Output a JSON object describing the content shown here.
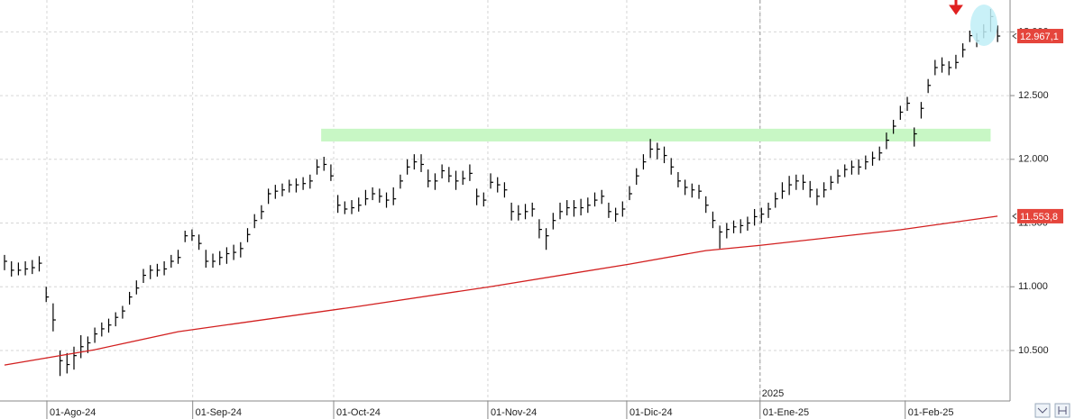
{
  "chart_data": {
    "type": "ohlc",
    "xlim": [
      -0.65,
      144.8
    ],
    "ylim": [
      10104,
      13250
    ],
    "yticks": [
      {
        "value": 10500,
        "label": "10.500"
      },
      {
        "value": 11000,
        "label": "11.000"
      },
      {
        "value": 11500,
        "label": "11.500"
      },
      {
        "value": 12000,
        "label": "12.000"
      },
      {
        "value": 12500,
        "label": "12.500"
      },
      {
        "value": 13000,
        "label": "13.000"
      }
    ],
    "xticks": [
      {
        "value": 6.1,
        "label": "01-Ago-24"
      },
      {
        "value": 27.1,
        "label": "01-Sep-24"
      },
      {
        "value": 47.4,
        "label": "01-Oct-24"
      },
      {
        "value": 69.6,
        "label": "01-Nov-24"
      },
      {
        "value": 89.6,
        "label": "01-Dic-24"
      },
      {
        "value": 108.8,
        "label": "01-Ene-25"
      },
      {
        "value": 129.7,
        "label": "01-Feb-25"
      }
    ],
    "year_marker": {
      "x": 108.8,
      "label": "2025"
    },
    "grid": true,
    "bars": {
      "color": "#000000",
      "label_color": "#e5453c",
      "last_label": "12.967,1",
      "high": [
        11250,
        11200,
        11190,
        11200,
        11210,
        11240,
        11000,
        10870,
        10500,
        10480,
        10530,
        10620,
        10610,
        10680,
        10720,
        10750,
        10800,
        10850,
        10960,
        11050,
        11140,
        11170,
        11180,
        11200,
        11250,
        11290,
        11440,
        11450,
        11410,
        11290,
        11260,
        11280,
        11310,
        11330,
        11350,
        11460,
        11570,
        11640,
        11770,
        11800,
        11810,
        11840,
        11850,
        11860,
        11880,
        12000,
        12020,
        11960,
        11720,
        11670,
        11680,
        11700,
        11760,
        11780,
        11770,
        11740,
        11780,
        11880,
        12000,
        12040,
        12040,
        11920,
        11890,
        11960,
        11940,
        11910,
        11910,
        11960,
        11770,
        11740,
        11890,
        11860,
        11820,
        11660,
        11640,
        11650,
        11660,
        11530,
        11460,
        11580,
        11660,
        11680,
        11680,
        11690,
        11700,
        11740,
        11760,
        11660,
        11620,
        11670,
        11790,
        11930,
        12040,
        12160,
        12130,
        12100,
        12010,
        11900,
        11840,
        11810,
        11800,
        11710,
        11590,
        11480,
        11500,
        11520,
        11530,
        11550,
        11610,
        11620,
        11660,
        11740,
        11820,
        11870,
        11880,
        11880,
        11830,
        11770,
        11820,
        11870,
        11920,
        11960,
        11990,
        12000,
        12030,
        12060,
        12100,
        12210,
        12310,
        12420,
        12490,
        12250,
        12450,
        12630,
        12780,
        12800,
        12770,
        12820,
        12910,
        13010,
        12990,
        13060,
        13180,
        13050
      ],
      "low": [
        11130,
        11080,
        11090,
        11090,
        11100,
        11120,
        10880,
        10650,
        10300,
        10320,
        10350,
        10440,
        10480,
        10560,
        10610,
        10640,
        10690,
        10750,
        10860,
        10940,
        11030,
        11060,
        11080,
        11090,
        11150,
        11180,
        11350,
        11360,
        11290,
        11150,
        11150,
        11170,
        11180,
        11210,
        11230,
        11350,
        11460,
        11530,
        11650,
        11690,
        11710,
        11740,
        11740,
        11760,
        11770,
        11880,
        11910,
        11830,
        11580,
        11570,
        11570,
        11590,
        11640,
        11680,
        11660,
        11620,
        11640,
        11770,
        11880,
        11920,
        11900,
        11780,
        11760,
        11850,
        11820,
        11760,
        11800,
        11830,
        11640,
        11630,
        11770,
        11740,
        11700,
        11520,
        11520,
        11530,
        11550,
        11380,
        11290,
        11450,
        11530,
        11560,
        11550,
        11560,
        11580,
        11630,
        11650,
        11540,
        11510,
        11550,
        11680,
        11800,
        11920,
        12010,
        12000,
        11970,
        11880,
        11780,
        11720,
        11700,
        11690,
        11580,
        11460,
        11300,
        11380,
        11420,
        11420,
        11440,
        11480,
        11500,
        11540,
        11620,
        11690,
        11720,
        11760,
        11760,
        11700,
        11640,
        11700,
        11760,
        11810,
        11860,
        11880,
        11880,
        11920,
        11950,
        11990,
        12080,
        12200,
        12310,
        12380,
        12100,
        12320,
        12520,
        12660,
        12680,
        12660,
        12710,
        12800,
        12920,
        12880,
        12950,
        13000,
        12920
      ],
      "close": [
        11200,
        11130,
        11130,
        11140,
        11150,
        11185,
        10920,
        10740,
        10420,
        10390,
        10460,
        10530,
        10560,
        10630,
        10670,
        10700,
        10760,
        10810,
        10920,
        10990,
        11090,
        11130,
        11130,
        11140,
        11200,
        11230,
        11400,
        11400,
        11340,
        11200,
        11200,
        11230,
        11260,
        11270,
        11300,
        11410,
        11520,
        11590,
        11730,
        11750,
        11760,
        11800,
        11800,
        11810,
        11830,
        11940,
        11960,
        11870,
        11640,
        11610,
        11620,
        11640,
        11690,
        11730,
        11710,
        11680,
        11690,
        11830,
        11940,
        11980,
        11960,
        11830,
        11830,
        11910,
        11870,
        11830,
        11850,
        11890,
        11710,
        11680,
        11820,
        11800,
        11760,
        11590,
        11570,
        11590,
        11610,
        11450,
        11400,
        11520,
        11590,
        11620,
        11620,
        11620,
        11640,
        11680,
        11710,
        11590,
        11570,
        11610,
        11730,
        11870,
        11980,
        12080,
        12080,
        12030,
        11940,
        11830,
        11780,
        11760,
        11750,
        11640,
        11520,
        11430,
        11450,
        11470,
        11480,
        11500,
        11550,
        11570,
        11610,
        11690,
        11750,
        11800,
        11830,
        11820,
        11760,
        11710,
        11760,
        11820,
        11870,
        11920,
        11940,
        11940,
        11980,
        12010,
        12050,
        12150,
        12260,
        12370,
        12440,
        12200,
        12400,
        12580,
        12720,
        12740,
        12720,
        12760,
        12860,
        12970,
        12930,
        13000,
        13120,
        12967.1
      ]
    },
    "moving_average": {
      "color": "#d21f1f",
      "last_label": "11.553,8",
      "x": [
        0,
        13,
        25,
        51,
        70,
        90,
        101,
        109,
        129,
        143
      ],
      "values": [
        10386,
        10506,
        10648,
        10846,
        11001,
        11178,
        11284,
        11326,
        11447,
        11553.8
      ]
    },
    "band": {
      "x": [
        45.6,
        142
      ],
      "y": [
        12140,
        12240
      ],
      "color": "#c8f7c5"
    }
  }
}
